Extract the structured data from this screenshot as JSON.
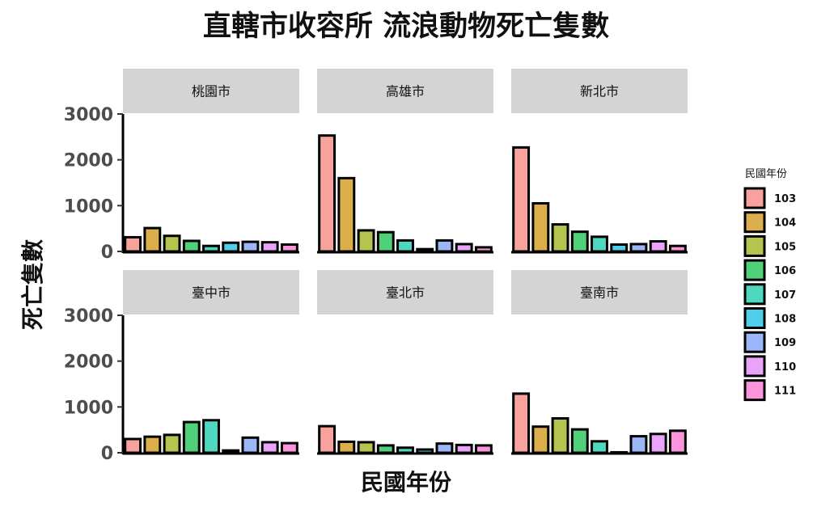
{
  "chart_data": {
    "type": "bar",
    "title": "直轄市收容所 流浪動物死亡隻數",
    "xlabel": "民國年份",
    "ylabel": "死亡隻數",
    "ylim": [
      0,
      3000
    ],
    "yticks": [
      "0",
      "1000",
      "2000",
      "3000"
    ],
    "legend_title": "民國年份",
    "legend_position": "right",
    "categories": [
      "103",
      "104",
      "105",
      "106",
      "107",
      "108",
      "109",
      "110",
      "111"
    ],
    "colors": [
      "#f8a29e",
      "#dbb04c",
      "#b5c34f",
      "#51d07a",
      "#4dd8bf",
      "#4fcde9",
      "#9bb7f9",
      "#e9a4fa",
      "#fb93dd"
    ],
    "panels": [
      {
        "name": "桃園市",
        "values": [
          310,
          510,
          340,
          230,
          120,
          190,
          210,
          200,
          150
        ]
      },
      {
        "name": "高雄市",
        "values": [
          2530,
          1600,
          460,
          420,
          240,
          50,
          240,
          160,
          90
        ]
      },
      {
        "name": "新北市",
        "values": [
          2270,
          1050,
          590,
          430,
          320,
          150,
          160,
          220,
          120
        ]
      },
      {
        "name": "臺中市",
        "values": [
          300,
          350,
          390,
          670,
          710,
          50,
          330,
          230,
          210
        ]
      },
      {
        "name": "臺北市",
        "values": [
          580,
          240,
          230,
          160,
          110,
          70,
          200,
          170,
          160
        ]
      },
      {
        "name": "臺南市",
        "values": [
          1290,
          570,
          750,
          510,
          250,
          10,
          360,
          410,
          480
        ]
      }
    ]
  }
}
